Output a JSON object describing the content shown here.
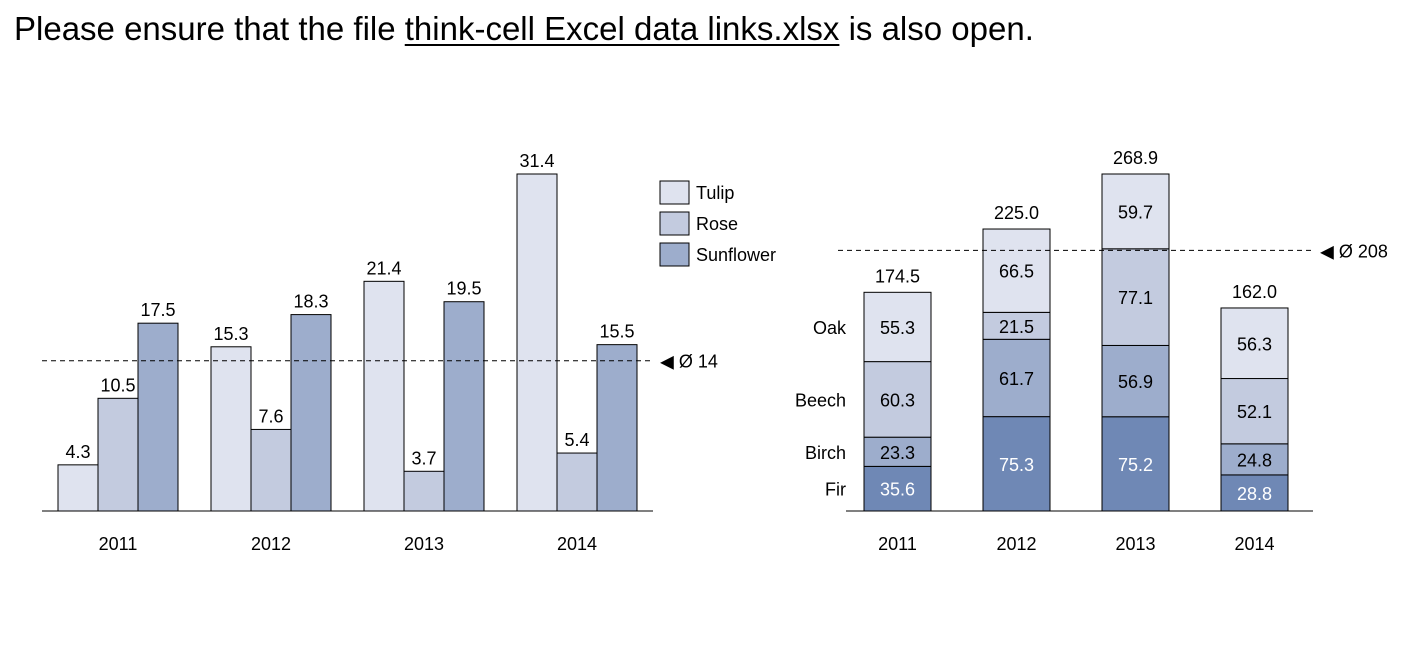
{
  "instruction": {
    "prefix": "Please ensure that the file ",
    "filename": "think-cell Excel data links.xlsx",
    "suffix": " is also open."
  },
  "chart_data": [
    {
      "type": "bar",
      "categories": [
        "2011",
        "2012",
        "2013",
        "2014"
      ],
      "series": [
        {
          "name": "Tulip",
          "values": [
            4.3,
            15.3,
            21.4,
            31.4
          ],
          "color": "#dfe3ef"
        },
        {
          "name": "Rose",
          "values": [
            10.5,
            7.6,
            3.7,
            5.4
          ],
          "color": "#c3cbdf"
        },
        {
          "name": "Sunflower",
          "values": [
            17.5,
            18.3,
            19.5,
            15.5
          ],
          "color": "#9dadcc"
        }
      ],
      "average_line": {
        "value": 14,
        "label": "◀ Ø 14"
      },
      "ylim": [
        0,
        31.4
      ],
      "grid": false,
      "legend": "top-right"
    },
    {
      "type": "bar",
      "stacked": true,
      "categories": [
        "2011",
        "2012",
        "2013",
        "2014"
      ],
      "series": [
        {
          "name": "Fir",
          "values": [
            35.6,
            75.3,
            75.2,
            28.8
          ],
          "color": "#6f88b5",
          "label_color": "#ffffff"
        },
        {
          "name": "Birch",
          "values": [
            23.3,
            61.7,
            56.9,
            24.8
          ],
          "color": "#9dadcc",
          "label_color": "#000000"
        },
        {
          "name": "Beech",
          "values": [
            60.3,
            21.5,
            77.1,
            52.1
          ],
          "color": "#c3cbdf",
          "label_color": "#000000"
        },
        {
          "name": "Oak",
          "values": [
            55.3,
            66.5,
            59.7,
            56.3
          ],
          "color": "#dfe3ef",
          "label_color": "#000000"
        }
      ],
      "totals": [
        "174.5",
        "225.0",
        "268.9",
        "162.0"
      ],
      "average_line": {
        "value": 208,
        "label": "◀ Ø 208"
      },
      "ylim": [
        0,
        268.9
      ],
      "grid": false,
      "legend": "series labels left of first column"
    }
  ]
}
